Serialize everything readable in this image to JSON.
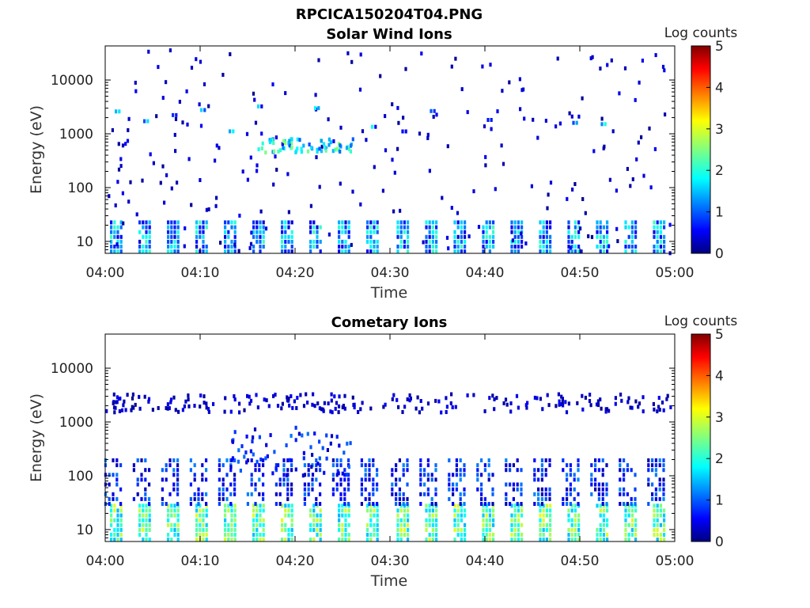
{
  "figure": {
    "filename_title": "RPCICA150204T04.PNG"
  },
  "chart_data": [
    {
      "type": "heatmap",
      "title": "Solar Wind Ions",
      "xlabel": "Time",
      "ylabel": "Energy (eV)",
      "x_ticks": [
        "04:00",
        "04:10",
        "04:20",
        "04:30",
        "04:40",
        "04:50",
        "05:00"
      ],
      "x_range": [
        "04:00",
        "05:00"
      ],
      "y_scale": "log",
      "y_ticks": [
        10,
        100,
        1000,
        10000
      ],
      "y_tick_labels": [
        "10",
        "100",
        "1000",
        "10000"
      ],
      "y_range": [
        6,
        43000
      ],
      "colorbar": {
        "label": "Log counts",
        "min": 0,
        "max": 5,
        "ticks": [
          "0",
          "1",
          "2",
          "3",
          "4",
          "5"
        ],
        "colormap": "jet"
      },
      "colors": [
        "#000080",
        "#0000ff",
        "#0080ff",
        "#00ffff",
        "#80ff80",
        "#ffff00",
        "#ff8000",
        "#ff0000",
        "#800000"
      ],
      "sweep_times_min": [
        0.5,
        3.5,
        6.5,
        9.5,
        12.5,
        15.5,
        18.5,
        21.5,
        24.5,
        27.5,
        30.7,
        33.7,
        36.7,
        39.7,
        42.7,
        45.7,
        48.7,
        51.7,
        54.7,
        57.7
      ],
      "features": [
        {
          "kind": "low_energy_band",
          "energy_eV": [
            6.5,
            27
          ],
          "log_counts": [
            0.4,
            2.2
          ]
        },
        {
          "kind": "sparse_noise",
          "energy_eV": [
            6,
            43000
          ],
          "log_counts": [
            0.1,
            0.6
          ]
        },
        {
          "kind": "beam",
          "energy_eV": [
            1100,
            3300
          ],
          "log_counts": [
            0.5,
            2.0
          ]
        },
        {
          "kind": "burst",
          "time_min": [
            16,
            26
          ],
          "energy_eV": [
            450,
            800
          ],
          "log_counts": [
            1.0,
            2.6
          ]
        }
      ]
    },
    {
      "type": "heatmap",
      "title": "Cometary Ions",
      "xlabel": "Time",
      "ylabel": "Energy (eV)",
      "x_ticks": [
        "04:00",
        "04:10",
        "04:20",
        "04:30",
        "04:40",
        "04:50",
        "05:00"
      ],
      "x_range": [
        "04:00",
        "05:00"
      ],
      "y_scale": "log",
      "y_ticks": [
        10,
        100,
        1000,
        10000
      ],
      "y_tick_labels": [
        "10",
        "100",
        "1000",
        "10000"
      ],
      "y_range": [
        6,
        43000
      ],
      "colorbar": {
        "label": "Log counts",
        "min": 0,
        "max": 5,
        "ticks": [
          "0",
          "1",
          "2",
          "3",
          "4",
          "5"
        ],
        "colormap": "jet"
      },
      "colors": [
        "#000080",
        "#0000ff",
        "#0080ff",
        "#00ffff",
        "#80ff80",
        "#ffff00",
        "#ff8000",
        "#ff0000",
        "#800000"
      ],
      "sweep_times_min": [
        0.5,
        3.5,
        6.5,
        9.5,
        12.5,
        15.5,
        18.5,
        21.5,
        24.5,
        27.5,
        30.7,
        33.7,
        36.7,
        39.7,
        42.7,
        45.7,
        48.7,
        51.7,
        54.7,
        57.7
      ],
      "features": [
        {
          "kind": "low_energy_band",
          "energy_eV": [
            6.5,
            30
          ],
          "log_counts": [
            1.5,
            3.0
          ]
        },
        {
          "kind": "tail",
          "energy_eV": [
            30,
            200
          ],
          "log_counts": [
            0.2,
            1.3
          ]
        },
        {
          "kind": "sparse_noise",
          "energy_eV": [
            1500,
            3300
          ],
          "log_counts": [
            0.1,
            0.6
          ]
        },
        {
          "kind": "burst",
          "time_min": [
            13,
            26
          ],
          "energy_eV": [
            100,
            800
          ],
          "log_counts": [
            0.3,
            1.2
          ]
        }
      ]
    }
  ]
}
